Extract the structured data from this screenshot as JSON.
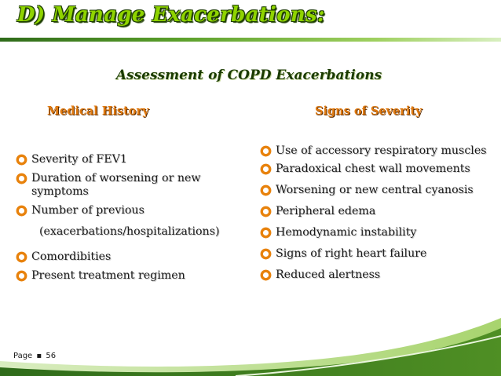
{
  "slide": {
    "title": "D) Manage Exacerbations:",
    "subtitle": "Assessment of COPD Exacerbations",
    "left_column": {
      "heading": "Medical History",
      "items": [
        {
          "text": "Severity of FEV1"
        },
        {
          "text": "Duration of worsening or new symptoms"
        },
        {
          "text": "Number of previous",
          "continuation": "(exacerbations/hospitalizations)"
        },
        {
          "text": "Comordibities"
        },
        {
          "text": "Present treatment regimen"
        }
      ]
    },
    "right_column": {
      "heading": "Signs of Severity",
      "items": [
        {
          "text": "Use of accessory respiratory muscles"
        },
        {
          "text": "Paradoxical chest wall movements"
        },
        {
          "text": "Worsening or new central cyanosis"
        },
        {
          "text": "Peripheral edema"
        },
        {
          "text": "Hemodynamic instability"
        },
        {
          "text": "Signs of right heart failure"
        },
        {
          "text": "Reduced alertness"
        }
      ]
    },
    "footer": {
      "page_label": "Page",
      "separator": "▪",
      "page_number": "56"
    },
    "colors": {
      "title_fill": "#8fd400",
      "heading_orange": "#e07a10",
      "bullet_orange": "#e8820c",
      "wave_dark_green": "#2f6b1a",
      "wave_light_green": "#b7dc85"
    },
    "bullet_icon": "orange-ring-bullet-icon"
  }
}
